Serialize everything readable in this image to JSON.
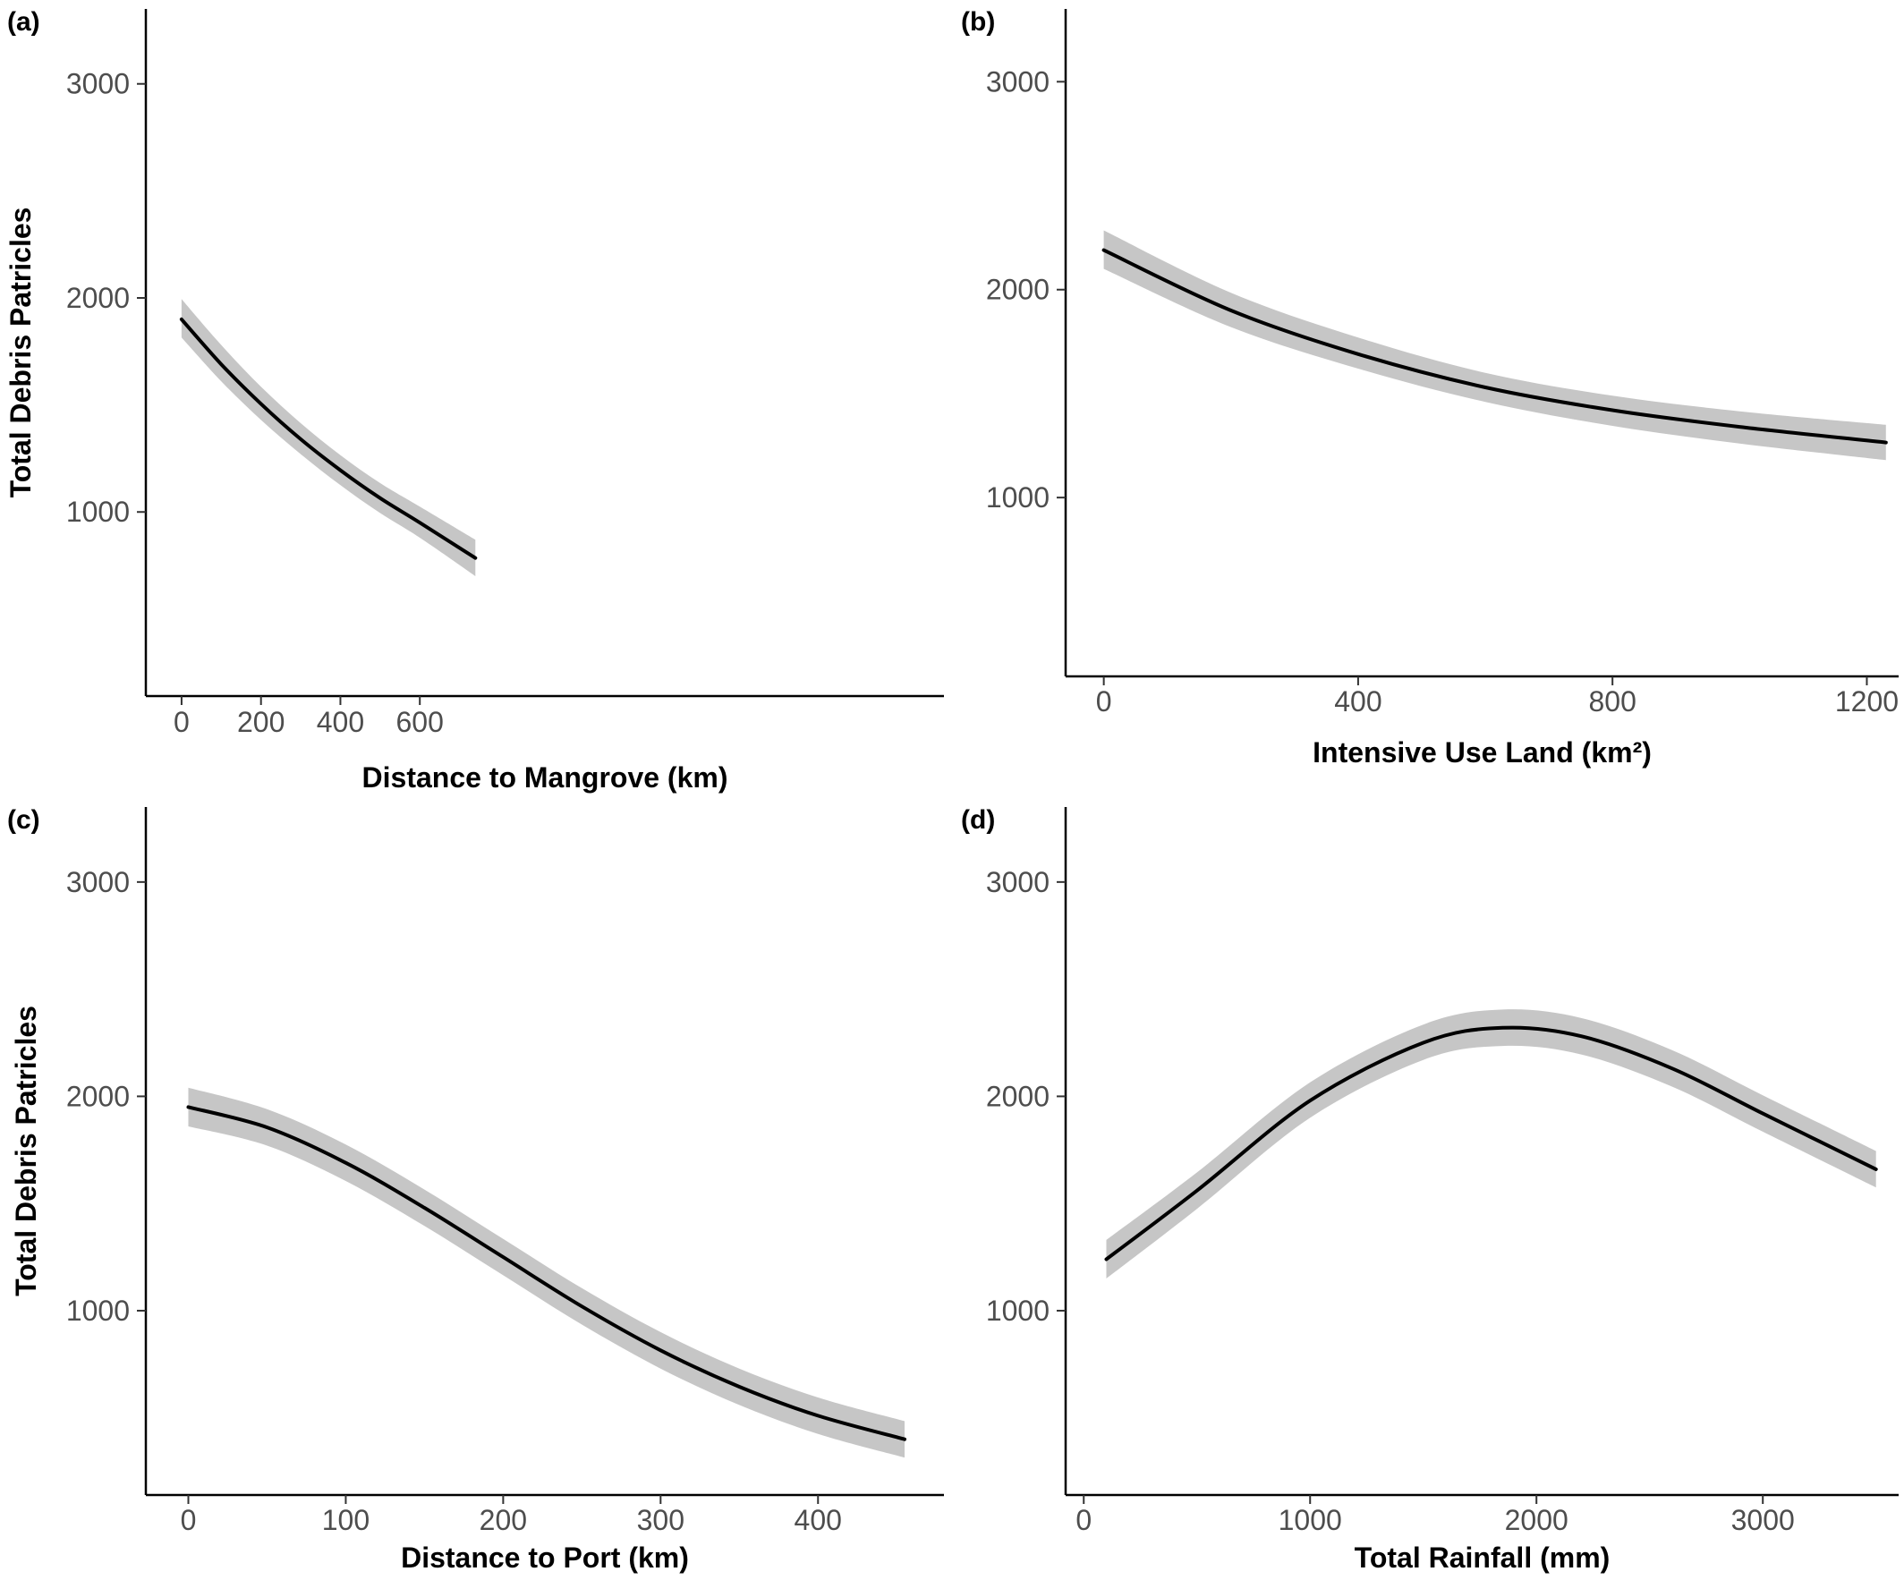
{
  "chart_data": [
    {
      "type": "line",
      "panel_label": "(a)",
      "xlabel": "Distance to Mangrove (km)",
      "ylabel": "Total Debris Patricles",
      "xticks": [
        0,
        200,
        400,
        600
      ],
      "yticks": [
        1000,
        2000,
        3000
      ],
      "xlim": [
        -90,
        1920
      ],
      "ylim": [
        140,
        3350
      ],
      "band": true,
      "series": [
        {
          "x": [
            0,
            100,
            200,
            300,
            400,
            500,
            600,
            740
          ],
          "y": [
            1900,
            1690,
            1505,
            1340,
            1195,
            1065,
            950,
            785
          ],
          "lower": [
            1815,
            1610,
            1430,
            1270,
            1125,
            995,
            880,
            700
          ],
          "upper": [
            1995,
            1780,
            1585,
            1415,
            1265,
            1135,
            1025,
            870
          ]
        }
      ]
    },
    {
      "type": "line",
      "panel_label": "(b)",
      "xlabel": "Intensive Use Land (km²)",
      "ylabel": "",
      "xticks": [
        0,
        400,
        800,
        1200
      ],
      "yticks": [
        1000,
        2000,
        3000
      ],
      "xlim": [
        -60,
        1250
      ],
      "ylim": [
        140,
        3350
      ],
      "band": true,
      "series": [
        {
          "x": [
            0,
            200,
            400,
            600,
            800,
            1000,
            1230
          ],
          "y": [
            2190,
            1900,
            1690,
            1530,
            1420,
            1340,
            1265
          ],
          "lower": [
            2100,
            1820,
            1620,
            1460,
            1345,
            1260,
            1180
          ],
          "upper": [
            2285,
            1985,
            1770,
            1600,
            1490,
            1415,
            1350
          ]
        }
      ]
    },
    {
      "type": "line",
      "panel_label": "(c)",
      "xlabel": "Distance to Port (km)",
      "ylabel": "Total Debris Patricles",
      "xticks": [
        0,
        100,
        200,
        300,
        400
      ],
      "yticks": [
        1000,
        2000,
        3000
      ],
      "xlim": [
        -27,
        480
      ],
      "ylim": [
        140,
        3350
      ],
      "band": true,
      "series": [
        {
          "x": [
            0,
            50,
            100,
            150,
            200,
            250,
            300,
            350,
            400,
            455
          ],
          "y": [
            1950,
            1855,
            1690,
            1480,
            1250,
            1020,
            815,
            645,
            510,
            400
          ],
          "lower": [
            1860,
            1770,
            1605,
            1395,
            1165,
            935,
            730,
            560,
            425,
            315
          ],
          "upper": [
            2040,
            1940,
            1775,
            1565,
            1335,
            1105,
            900,
            730,
            595,
            485
          ]
        }
      ]
    },
    {
      "type": "line",
      "panel_label": "(d)",
      "xlabel": "Total Rainfall (mm)",
      "ylabel": "",
      "xticks": [
        0,
        1000,
        2000,
        3000
      ],
      "yticks": [
        1000,
        2000,
        3000
      ],
      "xlim": [
        -80,
        3600
      ],
      "ylim": [
        140,
        3350
      ],
      "band": true,
      "series": [
        {
          "x": [
            100,
            500,
            1000,
            1500,
            1850,
            2200,
            2600,
            3000,
            3500
          ],
          "y": [
            1240,
            1560,
            1980,
            2250,
            2320,
            2280,
            2130,
            1920,
            1660
          ],
          "lower": [
            1150,
            1475,
            1900,
            2170,
            2235,
            2195,
            2045,
            1835,
            1575
          ],
          "upper": [
            1330,
            1645,
            2065,
            2335,
            2405,
            2365,
            2215,
            2005,
            1745
          ]
        }
      ]
    }
  ]
}
